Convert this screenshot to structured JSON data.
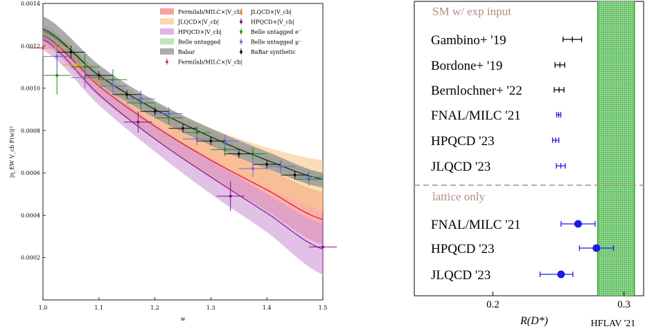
{
  "chart_data": [
    {
      "type": "line",
      "xlabel": "w",
      "ylabel": "|η_EW V_cb F(w)|²",
      "xlim": [
        1.0,
        1.5
      ],
      "ylim": [
        0.0,
        0.0014
      ],
      "x_ticks": [
        "1.0",
        "1.1",
        "1.2",
        "1.3",
        "1.4",
        "1.5"
      ],
      "y_ticks": [
        "0.0002",
        "0.0004",
        "0.0006",
        "0.0008",
        "0.0010",
        "0.0012",
        "0.0014"
      ],
      "legend_position": "top-right",
      "bands": [
        {
          "name": "Fermilab/MILC×|V_cb|",
          "color": "#f77b72",
          "x": [
            1.0,
            1.1,
            1.2,
            1.3,
            1.4,
            1.5
          ],
          "lower": [
            0.00121,
            0.00096,
            0.00076,
            0.00058,
            0.00042,
            0.00026
          ],
          "upper": [
            0.00129,
            0.00107,
            0.00089,
            0.00074,
            0.00062,
            0.00051
          ]
        },
        {
          "name": "JLQCD×|V_cb|",
          "color": "#f6c889",
          "x": [
            1.0,
            1.1,
            1.2,
            1.3,
            1.4,
            1.5
          ],
          "lower": [
            0.00123,
            0.001,
            0.00082,
            0.00067,
            0.00053,
            0.00042
          ],
          "upper": [
            0.0013,
            0.00108,
            0.00093,
            0.00081,
            0.00072,
            0.00066
          ]
        },
        {
          "name": "HPQCD×|V_cb|",
          "color": "#cf98d6",
          "x": [
            1.0,
            1.1,
            1.2,
            1.3,
            1.4,
            1.5
          ],
          "lower": [
            0.00118,
            0.00092,
            0.0007,
            0.0005,
            0.00032,
            0.00012
          ],
          "upper": [
            0.00128,
            0.00103,
            0.00083,
            0.00066,
            0.0005,
            0.00036
          ]
        },
        {
          "name": "Belle untagged",
          "color": "#a8d8a0",
          "x": [
            1.0,
            1.1,
            1.2,
            1.3,
            1.4,
            1.5
          ],
          "lower": [
            0.00124,
            0.00104,
            0.00088,
            0.00075,
            0.00064,
            0.00055
          ],
          "upper": [
            0.0013,
            0.00108,
            0.00092,
            0.00079,
            0.00068,
            0.0006
          ]
        },
        {
          "name": "Babar",
          "color": "#909090",
          "x": [
            1.0,
            1.1,
            1.2,
            1.3,
            1.4,
            1.5
          ],
          "lower": [
            0.00123,
            0.00102,
            0.00086,
            0.00073,
            0.00062,
            0.00053
          ],
          "upper": [
            0.00134,
            0.00111,
            0.00094,
            0.00081,
            0.0007,
            0.0006
          ]
        }
      ],
      "lines": [
        {
          "name": "Fermilab/MILC",
          "color": "#e8101a",
          "x": [
            1.0,
            1.1,
            1.2,
            1.3,
            1.4,
            1.5
          ],
          "y": [
            0.00125,
            0.00101,
            0.00082,
            0.00066,
            0.00052,
            0.00038
          ]
        },
        {
          "name": "HPQCD",
          "color": "#8b1094",
          "x": [
            1.0,
            1.1,
            1.2,
            1.3,
            1.4,
            1.5
          ],
          "y": [
            0.00123,
            0.00097,
            0.00076,
            0.00058,
            0.00041,
            0.00024
          ]
        },
        {
          "name": "Belle",
          "color": "#2a8a2a",
          "x": [
            1.0,
            1.1,
            1.2,
            1.3,
            1.4,
            1.5
          ],
          "y": [
            0.00127,
            0.00106,
            0.0009,
            0.00077,
            0.00066,
            0.00057
          ]
        },
        {
          "name": "BaBar",
          "color": "#222222",
          "x": [
            1.0,
            1.1,
            1.2,
            1.3,
            1.4,
            1.5
          ],
          "y": [
            0.00128,
            0.00106,
            0.0009,
            0.00077,
            0.00066,
            0.00057
          ]
        }
      ],
      "points": [
        {
          "name": "Fermilab/MILC×|V_cb|",
          "color": "#c84040",
          "data": [
            [
              1.0,
              0.00119,
              4e-05
            ]
          ]
        },
        {
          "name": "JLQCD×|V_cb|",
          "color": "#f0a020",
          "data": [
            [
              1.025,
              0.00119,
              4e-05
            ],
            [
              1.06,
              0.00111,
              4e-05
            ],
            [
              1.1,
              0.00104,
              4e-05
            ]
          ]
        },
        {
          "name": "HPQCD×|V_cb|",
          "color": "#7a1080",
          "data": [
            [
              1.17,
              0.00084,
              5e-05
            ],
            [
              1.335,
              0.00049,
              7e-05
            ],
            [
              1.5,
              0.00025,
              0.00014
            ]
          ]
        },
        {
          "name": "Belle untagged e⁻",
          "color": "#1e8c1e",
          "data": [
            [
              1.025,
              0.00106,
              9e-05
            ],
            [
              1.075,
              0.0011,
              6e-05
            ],
            [
              1.125,
              0.00104,
              5e-05
            ],
            [
              1.175,
              0.00093,
              4e-05
            ],
            [
              1.225,
              0.00086,
              3e-05
            ],
            [
              1.275,
              0.00079,
              3e-05
            ],
            [
              1.325,
              0.00071,
              3e-05
            ],
            [
              1.375,
              0.00069,
              3e-05
            ],
            [
              1.425,
              0.00063,
              3e-05
            ],
            [
              1.475,
              0.00057,
              3e-05
            ]
          ]
        },
        {
          "name": "Belle untagged μ⁻",
          "color": "#6a6ad8",
          "data": [
            [
              1.025,
              0.00115,
              6e-05
            ],
            [
              1.075,
              0.00105,
              5e-05
            ],
            [
              1.125,
              0.00101,
              4e-05
            ],
            [
              1.175,
              0.00095,
              4e-05
            ],
            [
              1.225,
              0.00088,
              3e-05
            ],
            [
              1.275,
              0.00076,
              3e-05
            ],
            [
              1.325,
              0.00075,
              3e-05
            ],
            [
              1.375,
              0.00062,
              4e-05
            ],
            [
              1.425,
              0.00063,
              3e-05
            ],
            [
              1.475,
              0.00058,
              3e-05
            ]
          ]
        },
        {
          "name": "BaBar synthetic",
          "color": "#111111",
          "data": [
            [
              1.05,
              0.00117,
              3e-05
            ],
            [
              1.1,
              0.00106,
              2e-05
            ],
            [
              1.15,
              0.00097,
              2e-05
            ],
            [
              1.2,
              0.00089,
              2e-05
            ],
            [
              1.25,
              0.00081,
              2e-05
            ],
            [
              1.3,
              0.00075,
              2e-05
            ],
            [
              1.35,
              0.00069,
              2e-05
            ],
            [
              1.4,
              0.00064,
              2e-05
            ],
            [
              1.45,
              0.00059,
              2e-05
            ]
          ]
        }
      ],
      "legend": [
        {
          "label": "Fermilab/MILC×|V_cb|",
          "kind": "band",
          "color": "#f77b72"
        },
        {
          "label": "JLQCD×|V_cb|",
          "kind": "band",
          "color": "#f6c889"
        },
        {
          "label": "HPQCD×|V_cb|",
          "kind": "band",
          "color": "#cf98d6"
        },
        {
          "label": "Belle untagged",
          "kind": "band",
          "color": "#a8d8a0"
        },
        {
          "label": "Babar",
          "kind": "band",
          "color": "#909090"
        },
        {
          "label": "Fermilab/MILC×|V_cb|",
          "kind": "point",
          "color": "#c84040"
        },
        {
          "label": "JLQCD×|V_cb|",
          "kind": "point",
          "color": "#f0a020"
        },
        {
          "label": "HPQCD×|V_cb|",
          "kind": "point",
          "color": "#7a1080"
        },
        {
          "label": "Belle untagged e⁻",
          "kind": "point",
          "color": "#1e8c1e"
        },
        {
          "label": "Belle untagged μ⁻",
          "kind": "point",
          "color": "#6a6ad8"
        },
        {
          "label": "BaBar synthetic",
          "kind": "point",
          "color": "#111111"
        }
      ]
    },
    {
      "type": "scatter",
      "xlabel": "R(D*)",
      "x_ticks": [
        "0.2",
        "0.3"
      ],
      "xlim": [
        0.14,
        0.315
      ],
      "sections": [
        {
          "title": "SM w/ exp input",
          "entries": [
            {
              "label": "Gambino+ '19",
              "value": 0.2606,
              "err_lo": 0.0071,
              "err_hi": 0.0071,
              "color": "#000000",
              "marker": "bar"
            },
            {
              "label": "Bordone+ '19",
              "value": 0.2511,
              "err_lo": 0.0037,
              "err_hi": 0.0037,
              "color": "#000000",
              "marker": "bar"
            },
            {
              "label": "Bernlochner+ '22",
              "value": 0.2505,
              "err_lo": 0.0037,
              "err_hi": 0.0037,
              "color": "#000000",
              "marker": "bar"
            },
            {
              "label": "FNAL/MILC '21",
              "value": 0.2502,
              "err_lo": 0.0016,
              "err_hi": 0.0016,
              "color": "#1a1ae6",
              "marker": "bar"
            },
            {
              "label": "HPQCD '23",
              "value": 0.2479,
              "err_lo": 0.0024,
              "err_hi": 0.0024,
              "color": "#1a1ae6",
              "marker": "bar"
            },
            {
              "label": "JLQCD '23",
              "value": 0.2518,
              "err_lo": 0.0034,
              "err_hi": 0.0034,
              "color": "#1a1ae6",
              "marker": "bar"
            }
          ]
        },
        {
          "title": "lattice only",
          "entries": [
            {
              "label": "FNAL/MILC '21",
              "value": 0.265,
              "err_lo": 0.013,
              "err_hi": 0.013,
              "color": "#1a1ae6",
              "marker": "dot"
            },
            {
              "label": "HPQCD '23",
              "value": 0.279,
              "err_lo": 0.013,
              "err_hi": 0.013,
              "color": "#1a1ae6",
              "marker": "dot"
            },
            {
              "label": "JLQCD '23",
              "value": 0.252,
              "err_lo": 0.016,
              "err_hi": 0.009,
              "color": "#1a1ae6",
              "marker": "dot"
            }
          ]
        }
      ],
      "band": {
        "label": "HFLAV '21",
        "low": 0.28,
        "high": 0.308,
        "color": "#1fa81f"
      }
    }
  ]
}
